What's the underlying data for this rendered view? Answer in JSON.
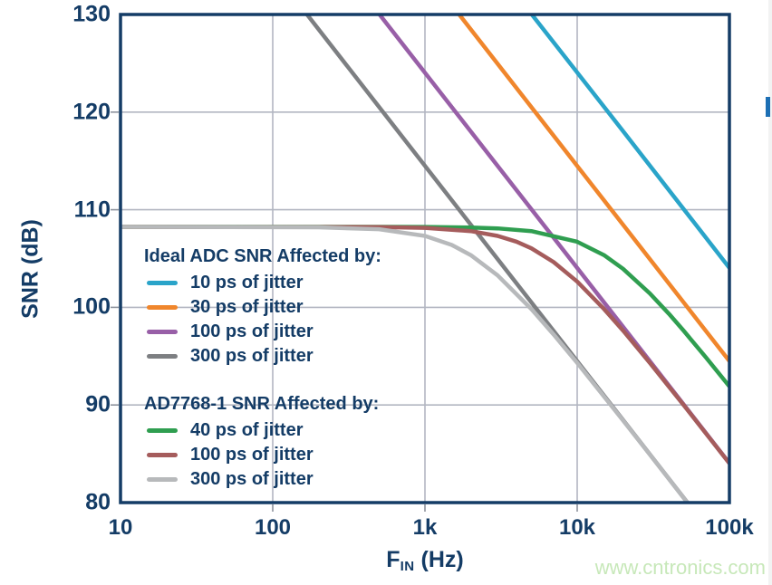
{
  "page": {
    "background": "#ffffff",
    "watermark": "www.cntronics.com"
  },
  "chart_data": {
    "type": "line",
    "title": "",
    "grid": true,
    "legend_position": "inside-left",
    "colors": {
      "axis_frame": "#143c66",
      "text": "#143c66",
      "gridline": "#b2b6c1",
      "tick_mark": "#8d929d",
      "plot_background": "#ffffff"
    },
    "x_axis": {
      "label_prefix": "F",
      "label_sub": "IN",
      "label_suffix": " (Hz)",
      "scale": "log",
      "min": 10,
      "max": 100000,
      "ticks": [
        {
          "value": 10,
          "label": "10"
        },
        {
          "value": 100,
          "label": "100"
        },
        {
          "value": 1000,
          "label": "1k"
        },
        {
          "value": 10000,
          "label": "10k"
        },
        {
          "value": 100000,
          "label": "100k"
        }
      ]
    },
    "y_axis": {
      "label": "SNR (dB)",
      "scale": "linear",
      "min": 80,
      "max": 130,
      "ticks": [
        {
          "value": 130,
          "label": "130"
        },
        {
          "value": 120,
          "label": "120"
        },
        {
          "value": 110,
          "label": "110"
        },
        {
          "value": 100,
          "label": "100"
        },
        {
          "value": 90,
          "label": "90"
        },
        {
          "value": 80,
          "label": "80"
        }
      ]
    },
    "legend": {
      "groups": [
        {
          "title": "Ideal ADC SNR Affected by:",
          "items": [
            "ideal-10ps",
            "ideal-30ps",
            "ideal-100ps",
            "ideal-300ps"
          ]
        },
        {
          "title": "AD7768-1 SNR Affected by:",
          "items": [
            "ad7768-40ps",
            "ad7768-100ps",
            "ad7768-300ps"
          ]
        }
      ]
    },
    "series": [
      {
        "name": "ideal-10ps",
        "group": "Ideal ADC",
        "label": "10 ps of jitter",
        "color": "#2aa4c9",
        "points": [
          [
            5033,
            130
          ],
          [
            20000,
            118.06
          ],
          [
            100000,
            104.04
          ]
        ]
      },
      {
        "name": "ideal-30ps",
        "group": "Ideal ADC",
        "label": "30 ps of jitter",
        "color": "#f0862c",
        "points": [
          [
            1678,
            130
          ],
          [
            10000,
            114.49
          ],
          [
            100000,
            94.49
          ]
        ]
      },
      {
        "name": "ideal-100ps",
        "group": "Ideal ADC",
        "label": "100 ps of jitter",
        "color": "#985fa7",
        "points": [
          [
            503,
            130
          ],
          [
            5000,
            110.06
          ],
          [
            100000,
            84.04
          ]
        ]
      },
      {
        "name": "ideal-300ps",
        "group": "Ideal ADC",
        "label": "300 ps of jitter",
        "color": "#7d7f82",
        "points": [
          [
            168,
            130
          ],
          [
            2000,
            108.47
          ],
          [
            53020,
            80
          ]
        ]
      },
      {
        "name": "ad7768-40ps",
        "group": "AD7768-1",
        "label": "40 ps of jitter",
        "color": "#2f9e50",
        "points": [
          [
            10,
            108.25
          ],
          [
            500,
            108.25
          ],
          [
            1000,
            108.23
          ],
          [
            2000,
            108.18
          ],
          [
            3000,
            108.09
          ],
          [
            5000,
            107.81
          ],
          [
            10000,
            106.72
          ],
          [
            15000,
            105.35
          ],
          [
            20000,
            103.95
          ],
          [
            30000,
            101.43
          ],
          [
            40000,
            99.35
          ],
          [
            50000,
            97.61
          ],
          [
            70000,
            94.88
          ],
          [
            100000,
            91.9
          ]
        ]
      },
      {
        "name": "ad7768-100ps",
        "group": "AD7768-1",
        "label": "100 ps of jitter",
        "color": "#a55c5c",
        "points": [
          [
            10,
            108.25
          ],
          [
            500,
            108.22
          ],
          [
            1000,
            108.14
          ],
          [
            2000,
            107.81
          ],
          [
            3000,
            107.32
          ],
          [
            4000,
            106.72
          ],
          [
            5000,
            106.05
          ],
          [
            7000,
            104.64
          ],
          [
            10000,
            102.64
          ],
          [
            15000,
            99.83
          ],
          [
            20000,
            97.63
          ],
          [
            30000,
            94.31
          ],
          [
            50000,
            90.0
          ],
          [
            100000,
            84.02
          ]
        ]
      },
      {
        "name": "ad7768-300ps",
        "group": "AD7768-1",
        "label": "300 ps of jitter",
        "color": "#b7b9bb",
        "points": [
          [
            10,
            108.25
          ],
          [
            200,
            108.2
          ],
          [
            500,
            108.0
          ],
          [
            1000,
            107.32
          ],
          [
            1500,
            106.39
          ],
          [
            2000,
            105.35
          ],
          [
            3000,
            103.28
          ],
          [
            5000,
            99.83
          ],
          [
            7000,
            97.22
          ],
          [
            10000,
            94.31
          ],
          [
            20000,
            88.42
          ],
          [
            30000,
            84.93
          ],
          [
            40000,
            82.44
          ],
          [
            52900,
            80.0
          ]
        ]
      }
    ]
  },
  "decorations": {
    "cursor_color": "#1c6fb4",
    "edge_strip_color": "#f2f3f3"
  }
}
